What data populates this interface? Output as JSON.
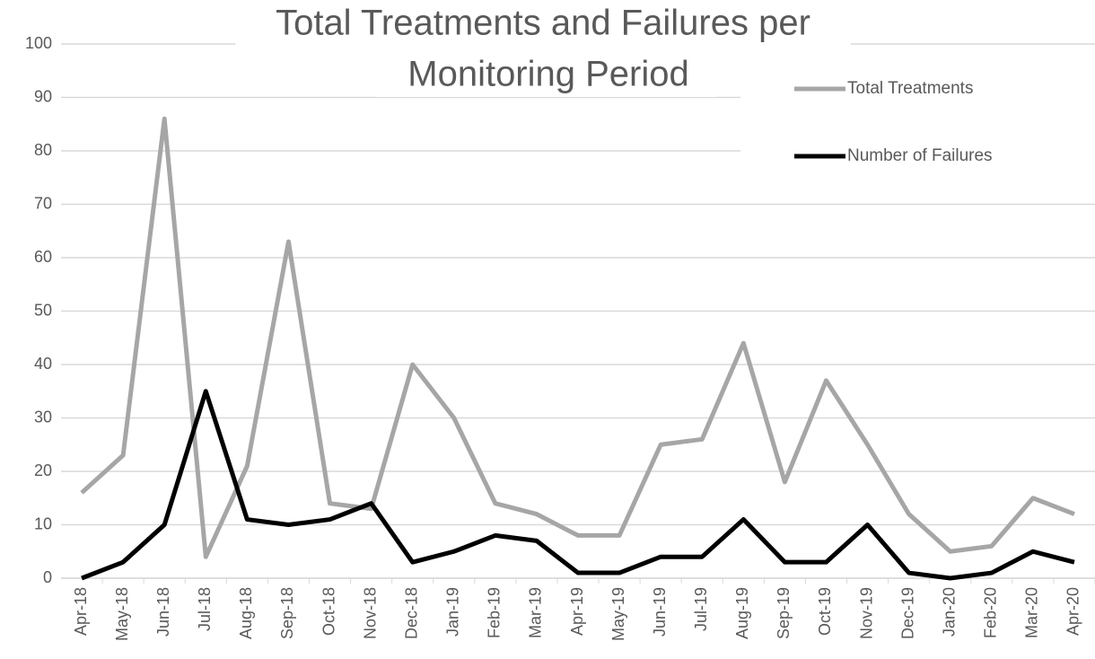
{
  "chart_data": {
    "type": "line",
    "title": [
      "Total Treatments and Failures per",
      "Monitoring Period"
    ],
    "categories": [
      "Apr-18",
      "May-18",
      "Jun-18",
      "Jul-18",
      "Aug-18",
      "Sep-18",
      "Oct-18",
      "Nov-18",
      "Dec-18",
      "Jan-19",
      "Feb-19",
      "Mar-19",
      "Apr-19",
      "May-19",
      "Jun-19",
      "Jul-19",
      "Aug-19",
      "Sep-19",
      "Oct-19",
      "Nov-19",
      "Dec-19",
      "Jan-20",
      "Feb-20",
      "Mar-20",
      "Apr-20"
    ],
    "series": [
      {
        "name": "Total Treatments",
        "color": "#a6a6a6",
        "values": [
          16,
          23,
          86,
          4,
          21,
          63,
          14,
          13,
          40,
          30,
          14,
          12,
          8,
          8,
          25,
          26,
          44,
          18,
          37,
          25,
          12,
          5,
          6,
          15,
          12
        ]
      },
      {
        "name": "Number of Failures",
        "color": "#000000",
        "values": [
          0,
          3,
          10,
          35,
          11,
          10,
          11,
          14,
          3,
          5,
          8,
          7,
          1,
          1,
          4,
          4,
          11,
          3,
          3,
          10,
          1,
          0,
          1,
          5,
          3
        ]
      }
    ],
    "ylim": [
      0,
      100
    ],
    "yticks": [
      0,
      10,
      20,
      30,
      40,
      50,
      60,
      70,
      80,
      90,
      100
    ],
    "grid": true,
    "legend": "top-right"
  }
}
